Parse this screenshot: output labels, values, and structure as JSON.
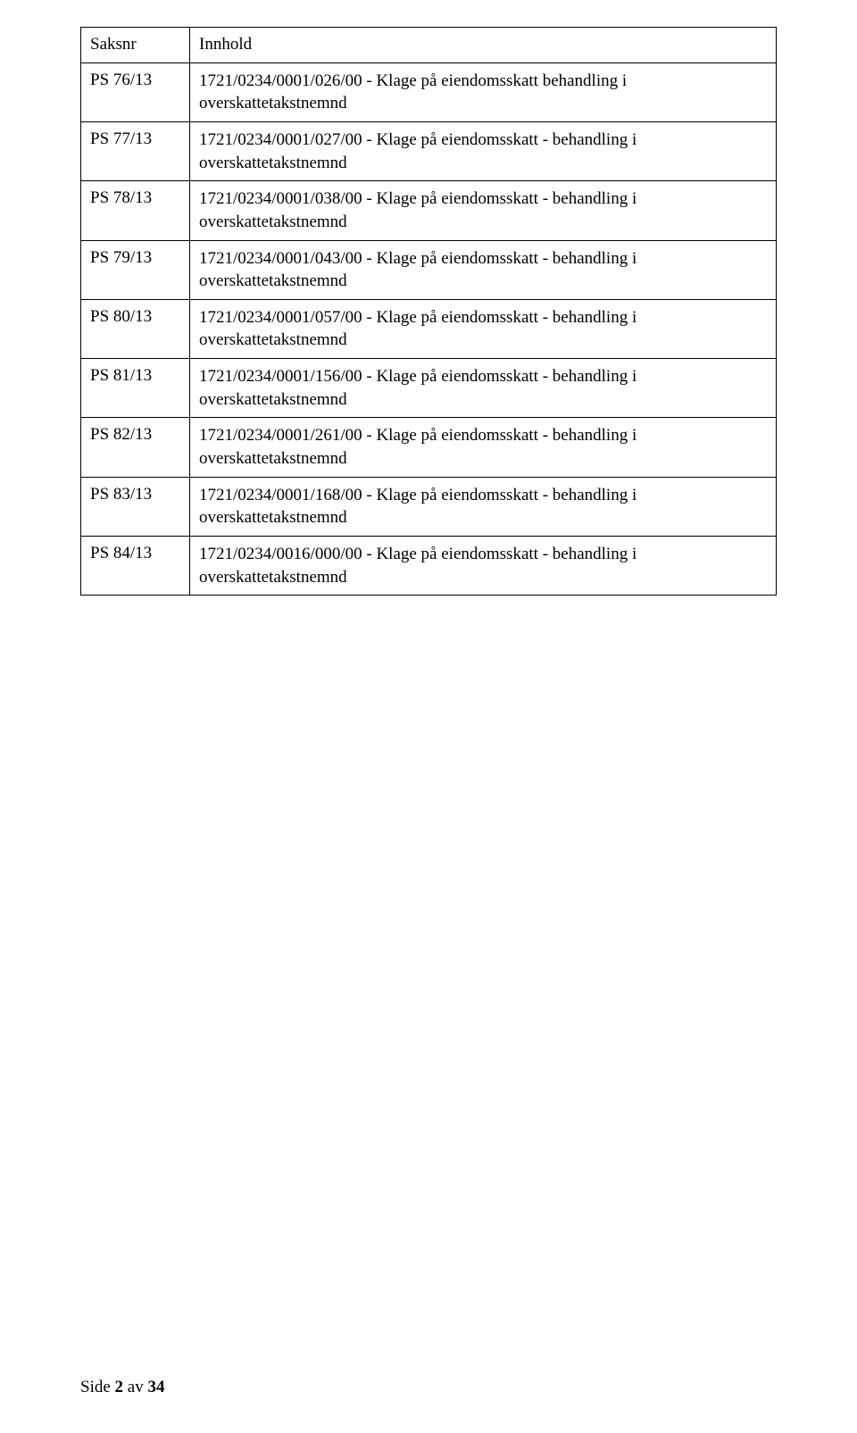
{
  "table": {
    "headers": {
      "saksnr": "Saksnr",
      "innhold": "Innhold"
    },
    "rows": [
      {
        "saksnr": "PS 76/13",
        "innhold": "1721/0234/0001/026/00 - Klage på eiendomsskatt behandling i overskattetakstnemnd"
      },
      {
        "saksnr": "PS 77/13",
        "innhold": "1721/0234/0001/027/00 - Klage på eiendomsskatt - behandling i overskattetakstnemnd"
      },
      {
        "saksnr": "PS 78/13",
        "innhold": "1721/0234/0001/038/00 - Klage på eiendomsskatt - behandling i overskattetakstnemnd"
      },
      {
        "saksnr": "PS 79/13",
        "innhold": "1721/0234/0001/043/00 - Klage på eiendomsskatt - behandling i overskattetakstnemnd"
      },
      {
        "saksnr": "PS 80/13",
        "innhold": "1721/0234/0001/057/00 - Klage på eiendomsskatt - behandling i overskattetakstnemnd"
      },
      {
        "saksnr": "PS 81/13",
        "innhold": "1721/0234/0001/156/00 - Klage på eiendomsskatt - behandling i overskattetakstnemnd"
      },
      {
        "saksnr": "PS 82/13",
        "innhold": "1721/0234/0001/261/00 - Klage på eiendomsskatt - behandling i overskattetakstnemnd"
      },
      {
        "saksnr": "PS 83/13",
        "innhold": "1721/0234/0001/168/00 - Klage på eiendomsskatt - behandling i overskattetakstnemnd"
      },
      {
        "saksnr": "PS 84/13",
        "innhold": "1721/0234/0016/000/00 - Klage på eiendomsskatt - behandling i overskattetakstnemnd"
      }
    ]
  },
  "footer": {
    "prefix": "Side ",
    "current": "2",
    "separator": " av ",
    "total": "34"
  }
}
